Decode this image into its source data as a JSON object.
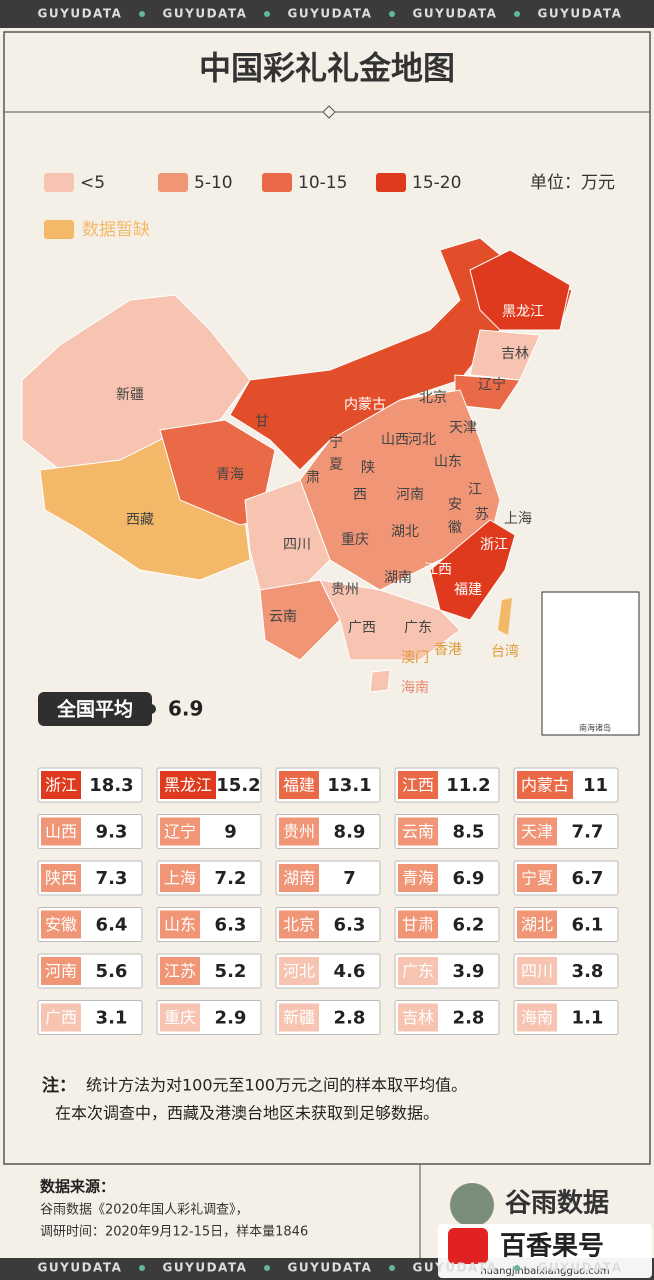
{
  "brand": "GUYUDATA",
  "title": "中国彩礼礼金地图",
  "legend": {
    "items": [
      {
        "label": "<5",
        "color": "#f7c4b1"
      },
      {
        "label": "5-10",
        "color": "#f09576"
      },
      {
        "label": "10-15",
        "color": "#ea6a47"
      },
      {
        "label": "15-20",
        "color": "#df3a1d"
      }
    ],
    "missing": {
      "label": "数据暂缺",
      "color": "#f4b968"
    },
    "unit": "单位：万元"
  },
  "map_labels": [
    "新疆",
    "西藏",
    "青海",
    "甘",
    "肃",
    "内蒙古",
    "黑龙江",
    "吉林",
    "辽宁",
    "北京",
    "天津",
    "河北",
    "山西",
    "山东",
    "宁",
    "夏",
    "陕",
    "西",
    "河南",
    "江",
    "苏",
    "安",
    "徽",
    "上海",
    "四川",
    "重庆",
    "湖北",
    "浙江",
    "江西",
    "湖南",
    "福建",
    "贵州",
    "云南",
    "广西",
    "广东",
    "香港",
    "澳门",
    "台湾",
    "海南",
    "南海诸岛"
  ],
  "average": {
    "label": "全国平均",
    "value": 6.9
  },
  "ranking": [
    {
      "name": "浙江",
      "value": 18.3
    },
    {
      "name": "黑龙江",
      "value": 15.2
    },
    {
      "name": "福建",
      "value": 13.1
    },
    {
      "name": "江西",
      "value": 11.2
    },
    {
      "name": "内蒙古",
      "value": 11
    },
    {
      "name": "山西",
      "value": 9.3
    },
    {
      "name": "辽宁",
      "value": 9
    },
    {
      "name": "贵州",
      "value": 8.9
    },
    {
      "name": "云南",
      "value": 8.5
    },
    {
      "name": "天津",
      "value": 7.7
    },
    {
      "name": "陕西",
      "value": 7.3
    },
    {
      "name": "上海",
      "value": 7.2
    },
    {
      "name": "湖南",
      "value": 7
    },
    {
      "name": "青海",
      "value": 6.9
    },
    {
      "name": "宁夏",
      "value": 6.7
    },
    {
      "name": "安徽",
      "value": 6.4
    },
    {
      "name": "山东",
      "value": 6.3
    },
    {
      "name": "北京",
      "value": 6.3
    },
    {
      "name": "甘肃",
      "value": 6.2
    },
    {
      "name": "湖北",
      "value": 6.1
    },
    {
      "name": "河南",
      "value": 5.6
    },
    {
      "name": "江苏",
      "value": 5.2
    },
    {
      "name": "河北",
      "value": 4.6
    },
    {
      "name": "广东",
      "value": 3.9
    },
    {
      "name": "四川",
      "value": 3.8
    },
    {
      "name": "广西",
      "value": 3.1
    },
    {
      "name": "重庆",
      "value": 2.9
    },
    {
      "name": "新疆",
      "value": 2.8
    },
    {
      "name": "吉林",
      "value": 2.8
    },
    {
      "name": "海南",
      "value": 1.1
    }
  ],
  "note": {
    "prefix": "注：",
    "lines": [
      "统计方法为对100元至100万元之间的样本取平均值。",
      "在本次调查中，西藏及港澳台地区未获取到足够数据。"
    ]
  },
  "source": {
    "title": "数据来源：",
    "lines": [
      "谷雨数据《2020年国人彩礼调查》，",
      "调研时间：2020年9月12-15日，样本量1846"
    ]
  },
  "logo": "谷雨数据",
  "watermark": {
    "name": "百香果号",
    "url": "huangjinbaixiangguo.com"
  }
}
